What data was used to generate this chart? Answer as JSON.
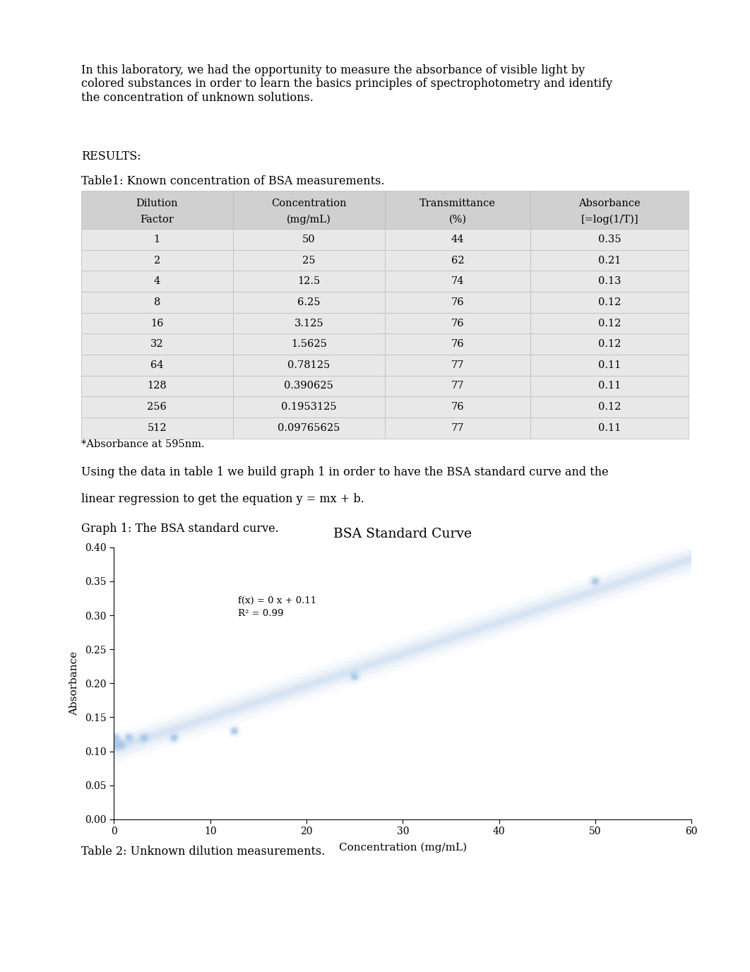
{
  "intro_text": "In this laboratory, we had the opportunity to measure the absorbance of visible light by\ncolored substances in order to learn the basics principles of spectrophotometry and identify\nthe concentration of unknown solutions.",
  "results_label": "RESULTS:",
  "table1_title": "Table1: Known concentration of BSA measurements.",
  "table1_headers": [
    "Dilution\nFactor",
    "Concentration\n(mg/mL)",
    "Transmittance\n(%)",
    "Absorbance\n[=log(1/T)]"
  ],
  "table1_data": [
    [
      "1",
      "50",
      "44",
      "0.35"
    ],
    [
      "2",
      "25",
      "62",
      "0.21"
    ],
    [
      "4",
      "12.5",
      "74",
      "0.13"
    ],
    [
      "8",
      "6.25",
      "76",
      "0.12"
    ],
    [
      "16",
      "3.125",
      "76",
      "0.12"
    ],
    [
      "32",
      "1.5625",
      "76",
      "0.12"
    ],
    [
      "64",
      "0.78125",
      "77",
      "0.11"
    ],
    [
      "128",
      "0.390625",
      "77",
      "0.11"
    ],
    [
      "256",
      "0.1953125",
      "76",
      "0.12"
    ],
    [
      "512",
      "0.09765625",
      "77",
      "0.11"
    ]
  ],
  "table1_footnote": "*Absorbance at 595nm.",
  "paragraph2_line1": "Using the data in table 1 we build graph 1 in order to have the BSA standard curve and the",
  "paragraph2_line2": "linear regression to get the equation y = mx + b.",
  "graph1_label": "Graph 1: The BSA standard curve.",
  "graph_title": "BSA Standard Curve",
  "scatter_x": [
    50,
    25,
    12.5,
    6.25,
    3.125,
    1.5625,
    0.78125,
    0.390625,
    0.1953125,
    0.09765625
  ],
  "scatter_y": [
    0.35,
    0.21,
    0.13,
    0.12,
    0.12,
    0.12,
    0.11,
    0.11,
    0.12,
    0.11
  ],
  "trendline_label": "f(x) = 0 x + 0.11\nR² = 0.99",
  "xlabel": "Concentration (mg/mL)",
  "ylabel": "Absorbance",
  "xlim": [
    0,
    60
  ],
  "ylim": [
    0,
    0.4
  ],
  "xticks": [
    0,
    10,
    20,
    30,
    40,
    50,
    60
  ],
  "yticks": [
    0,
    0.05,
    0.1,
    0.15,
    0.2,
    0.25,
    0.3,
    0.35,
    0.4
  ],
  "table2_label": "Table 2: Unknown dilution measurements.",
  "scatter_color": "#a8c8e8",
  "trendline_color": "#a8c8e8",
  "bg_color": "#ffffff",
  "table_header_bg": "#d0d0d0",
  "table_row_bg": "#e8e8e8"
}
